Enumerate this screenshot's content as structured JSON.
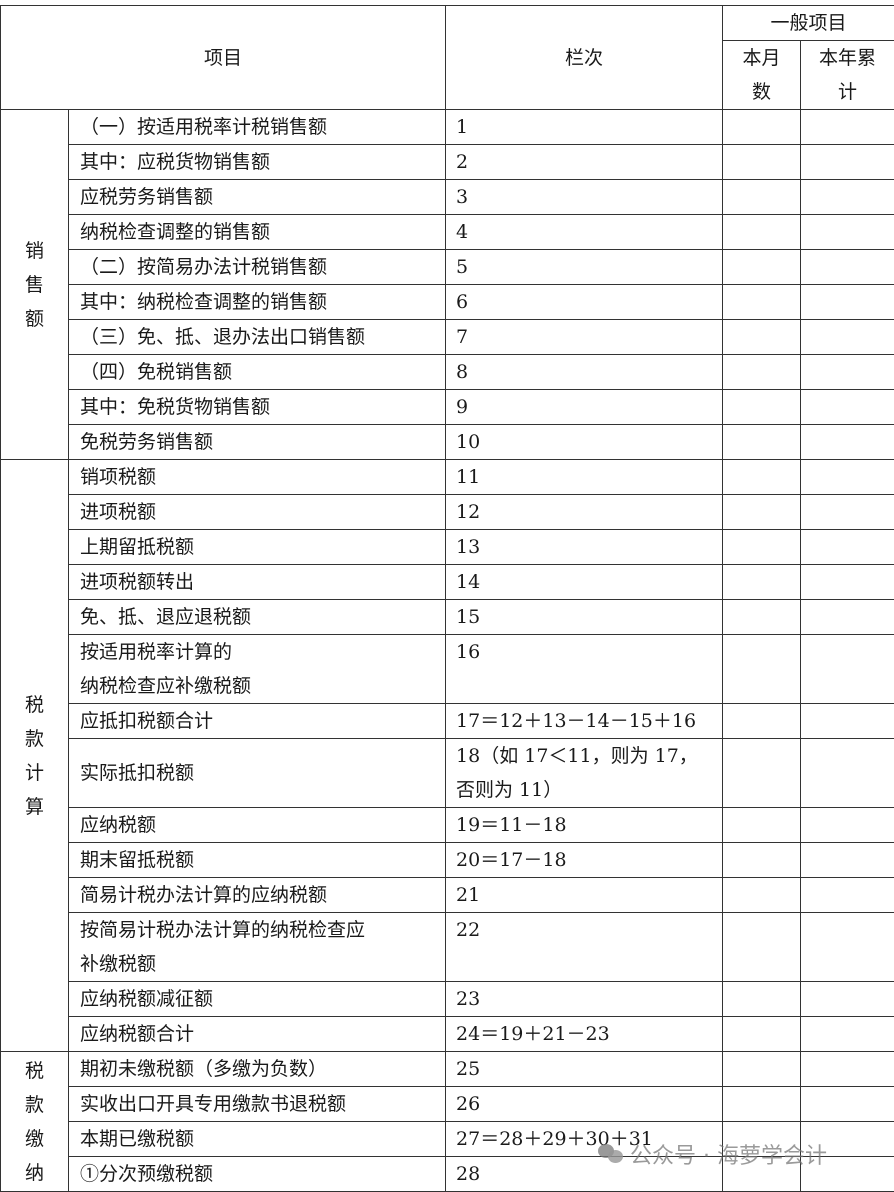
{
  "header": {
    "item": "项目",
    "line": "栏次",
    "group": "一般项目",
    "month": "本月数",
    "month_lines": [
      "本月",
      "数"
    ],
    "year_lines": [
      "本年累",
      "计"
    ]
  },
  "categories": [
    {
      "label": "销售额",
      "chars": [
        "销",
        "售",
        "额"
      ]
    },
    {
      "label": "税款计算",
      "chars": [
        "税",
        "款",
        "计",
        "算"
      ]
    },
    {
      "label": "税款缴纳",
      "chars": [
        "税",
        "款",
        "缴",
        "纳"
      ]
    }
  ],
  "rows": [
    {
      "cat": 0,
      "item": "（一）按适用税率计税销售额",
      "line": "1"
    },
    {
      "cat": 0,
      "item": "其中：应税货物销售额",
      "line": "2"
    },
    {
      "cat": 0,
      "item": "应税劳务销售额",
      "line": "3"
    },
    {
      "cat": 0,
      "item": "纳税检查调整的销售额",
      "line": "4"
    },
    {
      "cat": 0,
      "item": "（二）按简易办法计税销售额",
      "line": "5"
    },
    {
      "cat": 0,
      "item": "其中：纳税检查调整的销售额",
      "line": "6"
    },
    {
      "cat": 0,
      "item": "（三）免、抵、退办法出口销售额",
      "line": "7"
    },
    {
      "cat": 0,
      "item": "（四）免税销售额",
      "line": "8"
    },
    {
      "cat": 0,
      "item": "其中：免税货物销售额",
      "line": "9"
    },
    {
      "cat": 0,
      "item": "免税劳务销售额",
      "line": "10"
    },
    {
      "cat": 1,
      "item": "销项税额",
      "line": "11"
    },
    {
      "cat": 1,
      "item": "进项税额",
      "line": "12"
    },
    {
      "cat": 1,
      "item": "上期留抵税额",
      "line": "13"
    },
    {
      "cat": 1,
      "item": "进项税额转出",
      "line": "14"
    },
    {
      "cat": 1,
      "item": "免、抵、退应退税额",
      "line": "15"
    },
    {
      "cat": 1,
      "item": "按适用税率计算的\n纳税检查应补缴税额",
      "line": "16"
    },
    {
      "cat": 1,
      "item": "应抵扣税额合计",
      "line": "17＝12＋13－14－15＋16"
    },
    {
      "cat": 1,
      "item": "实际抵扣税额",
      "line": "18（如 17＜11，则为 17，\n否则为 11）"
    },
    {
      "cat": 1,
      "item": "应纳税额",
      "line": "19＝11－18"
    },
    {
      "cat": 1,
      "item": "期末留抵税额",
      "line": "20＝17－18"
    },
    {
      "cat": 1,
      "item": "简易计税办法计算的应纳税额",
      "line": "21"
    },
    {
      "cat": 1,
      "item": "按简易计税办法计算的纳税检查应\n补缴税额",
      "line": "22"
    },
    {
      "cat": 1,
      "item": "应纳税额减征额",
      "line": "23"
    },
    {
      "cat": 1,
      "item": "应纳税额合计",
      "line": "24＝19＋21－23"
    },
    {
      "cat": 2,
      "item": "期初未缴税额（多缴为负数）",
      "line": "25"
    },
    {
      "cat": 2,
      "item": "实收出口开具专用缴款书退税额",
      "line": "26"
    },
    {
      "cat": 2,
      "item": "本期已缴税额",
      "line": "27＝28＋29＋30＋31"
    },
    {
      "cat": 2,
      "item": "①分次预缴税额",
      "line": "28"
    }
  ],
  "watermark": "公众号 · 海萝学会计"
}
